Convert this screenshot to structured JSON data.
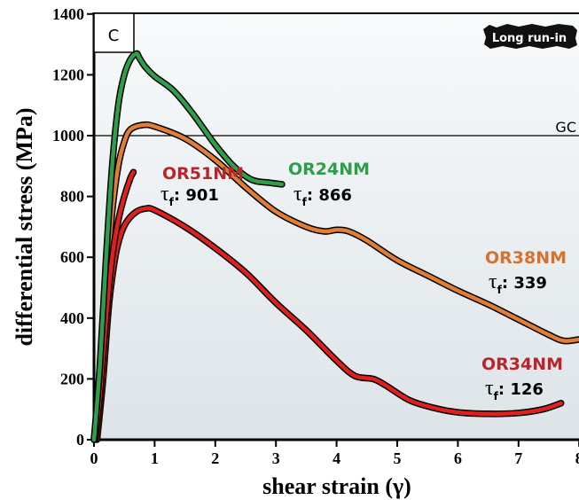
{
  "chart_data": {
    "type": "line",
    "panel_label": "C",
    "badge": "Long run-in",
    "xlabel": "shear strain (γ)",
    "ylabel": "differential stress (MPa)",
    "xlim": [
      0,
      8
    ],
    "ylim": [
      0,
      1400
    ],
    "x_ticks": [
      "0",
      "1",
      "2",
      "3",
      "4",
      "5",
      "6",
      "7",
      "8"
    ],
    "y_ticks": [
      "0",
      "200",
      "400",
      "600",
      "800",
      "1000",
      "1200",
      "1400"
    ],
    "grid": false,
    "reference_line": {
      "label": "GC",
      "y": 1000
    },
    "colors": {
      "OR51NM": "#e0201c",
      "OR24NM": "#2e9e4a",
      "OR38NM": "#e27d36",
      "OR34NM": "#e0201c",
      "OR51NM_label": "#b8262a",
      "OR24NM_label": "#2e9e4a",
      "OR38NM_label": "#d8702e",
      "OR34NM_label": "#b8262a"
    },
    "series": [
      {
        "name": "OR51NM",
        "tau_symbol": "τ",
        "tau_sub": "f",
        "tau_value": ": 901",
        "x": [
          0.02,
          0.1,
          0.2,
          0.3,
          0.4,
          0.5,
          0.6,
          0.65
        ],
        "y": [
          0,
          150,
          400,
          600,
          720,
          800,
          860,
          880
        ]
      },
      {
        "name": "OR24NM",
        "tau_symbol": "τ",
        "tau_sub": "f",
        "tau_value": ": 866",
        "x": [
          0.0,
          0.1,
          0.2,
          0.3,
          0.4,
          0.5,
          0.6,
          0.7,
          0.75,
          0.85,
          1.0,
          1.3,
          1.6,
          2.0,
          2.3,
          2.6,
          2.9,
          3.1
        ],
        "y": [
          0,
          250,
          600,
          900,
          1100,
          1200,
          1250,
          1270,
          1255,
          1225,
          1195,
          1150,
          1080,
          970,
          900,
          855,
          845,
          840
        ]
      },
      {
        "name": "OR38NM",
        "tau_symbol": "τ",
        "tau_sub": "f",
        "tau_value": ": 339",
        "x": [
          0.0,
          0.1,
          0.2,
          0.3,
          0.4,
          0.5,
          0.6,
          0.8,
          1.0,
          1.5,
          2.0,
          2.5,
          3.0,
          3.5,
          3.8,
          4.0,
          4.2,
          4.5,
          5.0,
          5.5,
          6.0,
          6.5,
          7.0,
          7.5,
          7.75,
          8.0
        ],
        "y": [
          0,
          200,
          500,
          750,
          900,
          980,
          1020,
          1035,
          1030,
          990,
          920,
          830,
          750,
          700,
          685,
          690,
          685,
          655,
          590,
          540,
          490,
          445,
          395,
          345,
          325,
          330
        ]
      },
      {
        "name": "OR34NM",
        "tau_symbol": "τ",
        "tau_sub": "f",
        "tau_value": ": 126",
        "x": [
          0.05,
          0.15,
          0.25,
          0.35,
          0.45,
          0.55,
          0.7,
          0.85,
          1.0,
          1.5,
          2.0,
          2.5,
          3.0,
          3.5,
          4.0,
          4.3,
          4.6,
          4.8,
          5.2,
          5.6,
          6.0,
          6.5,
          7.0,
          7.4,
          7.7
        ],
        "y": [
          0,
          200,
          450,
          600,
          680,
          720,
          750,
          760,
          755,
          700,
          630,
          550,
          450,
          360,
          260,
          210,
          200,
          180,
          130,
          105,
          90,
          85,
          88,
          100,
          120
        ]
      }
    ]
  }
}
